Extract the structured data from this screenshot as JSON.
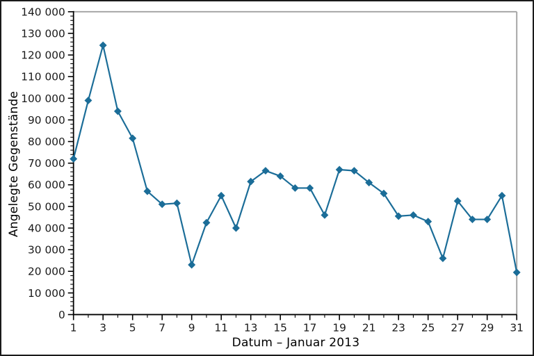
{
  "chart_data": {
    "type": "line",
    "title": "",
    "xlabel": "Datum – Januar 2013",
    "ylabel": "Angelegte Gegenstände",
    "x": [
      1,
      2,
      3,
      4,
      5,
      6,
      7,
      8,
      9,
      10,
      11,
      12,
      13,
      14,
      15,
      16,
      17,
      18,
      19,
      20,
      21,
      22,
      23,
      24,
      25,
      26,
      27,
      28,
      29,
      30,
      31
    ],
    "values": [
      72000,
      99000,
      124500,
      94000,
      81500,
      57000,
      51000,
      51500,
      23000,
      42500,
      55000,
      40000,
      61500,
      66500,
      64000,
      58500,
      58500,
      46000,
      67000,
      66500,
      61000,
      56000,
      45500,
      46000,
      43000,
      26000,
      52500,
      44000,
      44000,
      55000,
      19500
    ],
    "xlim": [
      1,
      31
    ],
    "ylim": [
      0,
      140000
    ],
    "y_major_step": 10000,
    "y_minor_step": 2000,
    "x_major_step": 2,
    "x_minor_step": 1,
    "y_tick_labels": [
      "0",
      "10 000",
      "20 000",
      "30 000",
      "40 000",
      "50 000",
      "60 000",
      "70 000",
      "80 000",
      "90 000",
      "100 000",
      "110 000",
      "120 000",
      "130 000",
      "140 000"
    ],
    "x_tick_labels": [
      "1",
      "3",
      "5",
      "7",
      "9",
      "11",
      "13",
      "15",
      "17",
      "19",
      "21",
      "23",
      "25",
      "27",
      "29",
      "31"
    ],
    "grid": false,
    "legend": null,
    "marker": "diamond",
    "colors": {
      "line": "#1b6d98",
      "axis": "#000000",
      "secondary_spine": "#a6a6a6",
      "tick_label": "#1a1a1a"
    }
  }
}
